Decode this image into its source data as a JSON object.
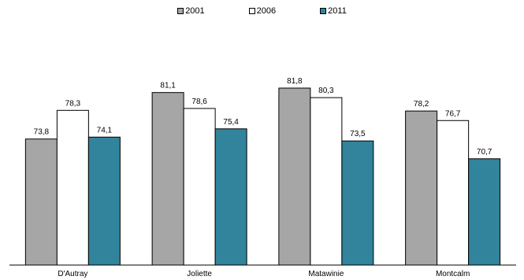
{
  "chart_data": {
    "type": "bar",
    "categories": [
      "D'Autray",
      "Joliette",
      "Matawinie",
      "Montcalm"
    ],
    "series": [
      {
        "name": "2001",
        "color": "#a6a6a6",
        "values": [
          73.8,
          81.1,
          81.8,
          78.2
        ],
        "labels": [
          "73,8",
          "81,1",
          "81,8",
          "78,2"
        ]
      },
      {
        "name": "2006",
        "color": "#ffffff",
        "values": [
          78.3,
          78.6,
          80.3,
          76.7
        ],
        "labels": [
          "78,3",
          "78,6",
          "80,3",
          "76,7"
        ]
      },
      {
        "name": "2011",
        "color": "#31849b",
        "values": [
          74.1,
          75.4,
          73.5,
          70.7
        ],
        "labels": [
          "74,1",
          "75,4",
          "73,5",
          "70,7"
        ]
      }
    ],
    "title": "",
    "xlabel": "",
    "ylabel": "",
    "ylim": [
      54,
      86
    ],
    "grid": false,
    "legend": "top-center"
  }
}
